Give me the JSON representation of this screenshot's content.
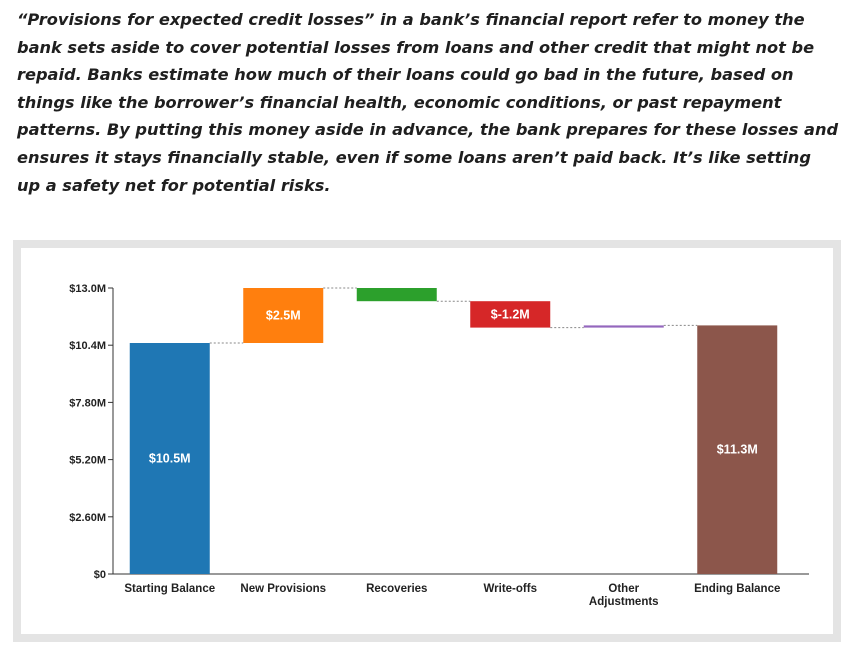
{
  "intro_text": "“Provisions for expected credit losses” in a bank’s financial report refer to money the bank sets aside to cover potential losses from loans and other credit that might not be repaid. Banks estimate how much of their loans could go bad in the future, based on things like the borrower’s financial health, economic conditions, or past repayment patterns. By putting this money aside in advance, the bank prepares for these losses and ensures it stays financially stable, even if some loans aren’t paid back. It’s like setting up a safety net for potential risks.",
  "chart_data": {
    "type": "bar",
    "subtype": "waterfall",
    "title": "",
    "xlabel": "",
    "ylabel": "",
    "ylim": [
      0,
      13.0
    ],
    "y_ticks": [
      0,
      2.6,
      5.2,
      7.8,
      10.4,
      13.0
    ],
    "y_tick_labels": [
      "$0",
      "$2.60M",
      "$5.20M",
      "$7.80M",
      "$10.4M",
      "$13.0M"
    ],
    "grid": false,
    "connector_lines": "dotted",
    "categories": [
      [
        "Starting Balance"
      ],
      [
        "New Provisions"
      ],
      [
        "Recoveries"
      ],
      [
        "Write-offs"
      ],
      [
        "Other",
        "Adjustments"
      ],
      [
        "Ending Balance"
      ]
    ],
    "values": [
      10.5,
      2.5,
      -0.6,
      -1.2,
      0.1,
      11.3
    ],
    "kinds": [
      "total",
      "delta",
      "delta",
      "delta",
      "delta",
      "total"
    ],
    "data_labels": [
      "$10.5M",
      "$2.5M",
      "",
      "$-1.2M",
      "",
      "$11.3M"
    ],
    "colors": [
      "#1f77b4",
      "#ff7f0e",
      "#2ca02c",
      "#d62728",
      "#9467bd",
      "#8c564b"
    ]
  }
}
